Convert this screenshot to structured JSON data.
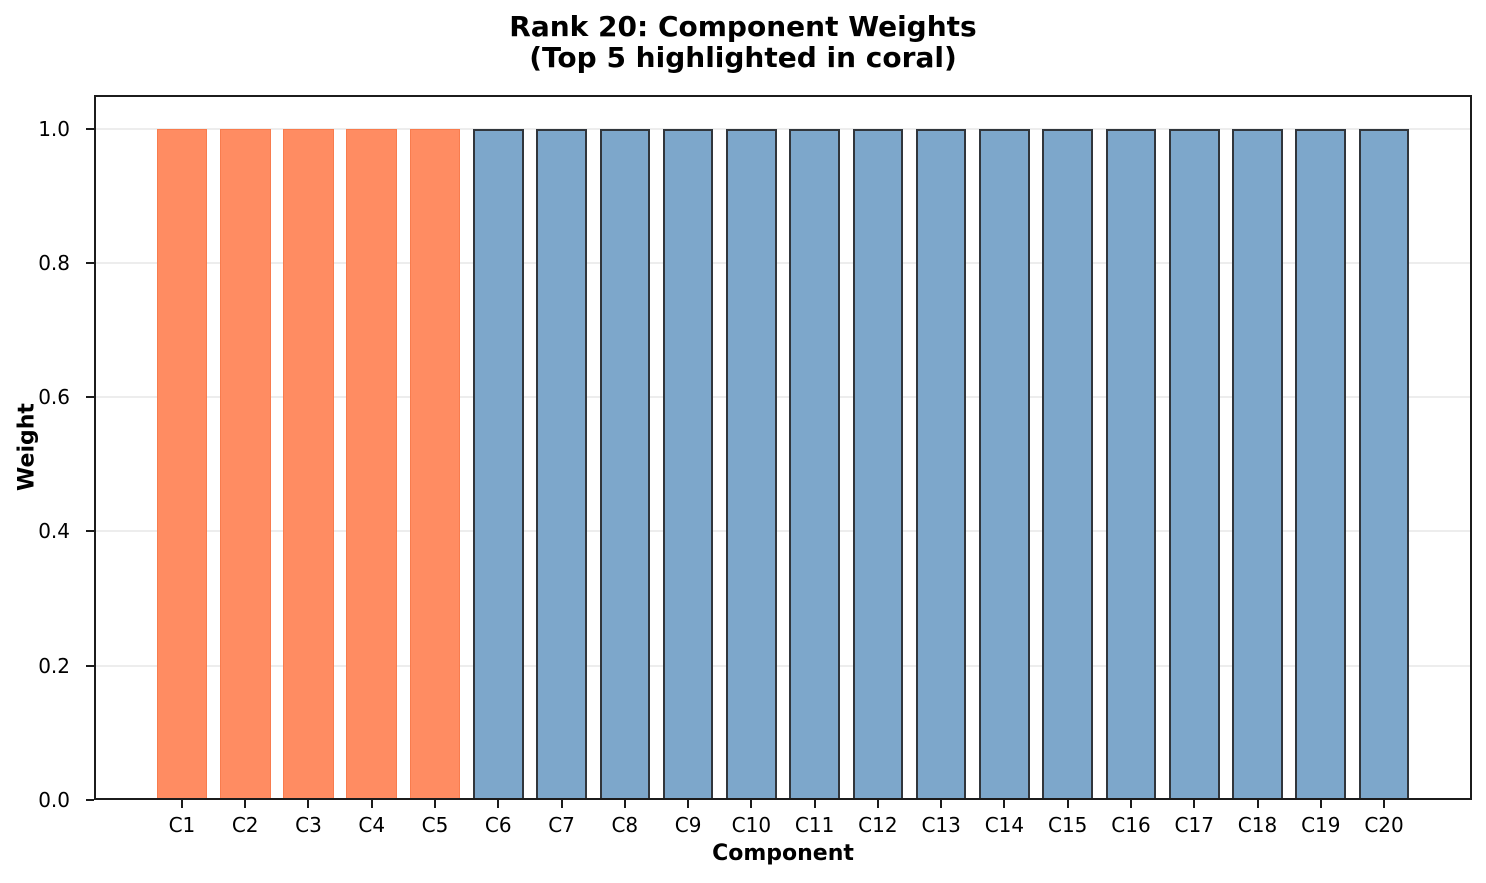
{
  "chart_data": {
    "type": "bar",
    "title": "Rank 20: Component Weights",
    "subtitle": "(Top 5 highlighted in coral)",
    "xlabel": "Component",
    "ylabel": "Weight",
    "categories": [
      "C1",
      "C2",
      "C3",
      "C4",
      "C5",
      "C6",
      "C7",
      "C8",
      "C9",
      "C10",
      "C11",
      "C12",
      "C13",
      "C14",
      "C15",
      "C16",
      "C17",
      "C18",
      "C19",
      "C20"
    ],
    "values": [
      1.0,
      1.0,
      1.0,
      1.0,
      1.0,
      1.0,
      1.0,
      1.0,
      1.0,
      1.0,
      1.0,
      1.0,
      1.0,
      1.0,
      1.0,
      1.0,
      1.0,
      1.0,
      1.0,
      1.0
    ],
    "highlight": {
      "count": 5,
      "name": "coral",
      "fill": "#FF8C62",
      "edge": "#F87C4E"
    },
    "base": {
      "name": "steelblue",
      "fill": "#7DA7CB",
      "edge": "#31363C"
    },
    "yticks": [
      0.0,
      0.2,
      0.4,
      0.6,
      0.8,
      1.0
    ],
    "ylim": [
      0,
      1.05
    ],
    "xlim": [
      -1.39,
      20.39
    ],
    "bar_width": 0.8,
    "grid": {
      "axis": "y",
      "color": "#ededed"
    },
    "legend_position": "none",
    "spine_color": "#1c1c1c"
  }
}
